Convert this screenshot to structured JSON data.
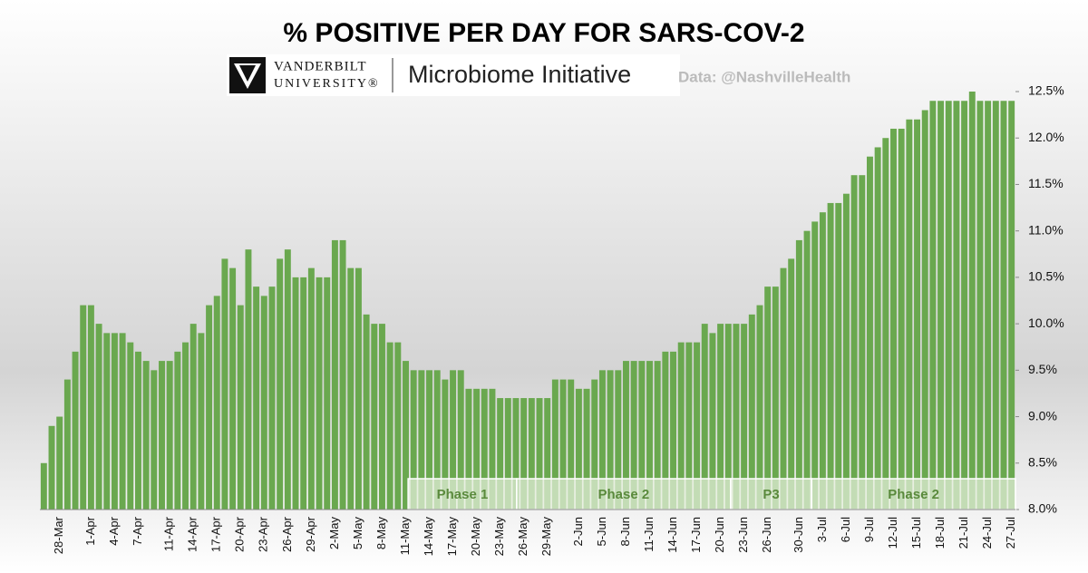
{
  "header": {
    "logo_top": "VANDERBILT",
    "logo_bottom": "UNIVERSITY®",
    "initiative": "Microbiome Initiative",
    "source": "Data: @NashvilleHealth"
  },
  "chart_data": {
    "type": "bar",
    "title": "% POSITIVE PER DAY FOR SARS-COV-2",
    "color": "#6aa84f",
    "categories": [
      null,
      null,
      "28-Mar",
      null,
      null,
      null,
      "1-Apr",
      null,
      null,
      "4-Apr",
      null,
      null,
      "7-Apr",
      null,
      null,
      null,
      "11-Apr",
      null,
      null,
      "14-Apr",
      null,
      null,
      "17-Apr",
      null,
      null,
      "20-Apr",
      null,
      null,
      "23-Apr",
      null,
      null,
      "26-Apr",
      null,
      null,
      "29-Apr",
      null,
      null,
      "2-May",
      null,
      null,
      "5-May",
      null,
      null,
      "8-May",
      null,
      null,
      "11-May",
      null,
      null,
      "14-May",
      null,
      null,
      "17-May",
      null,
      null,
      "20-May",
      null,
      null,
      "23-May",
      null,
      null,
      "26-May",
      null,
      null,
      "29-May",
      null,
      null,
      null,
      "2-Jun",
      null,
      null,
      "5-Jun",
      null,
      null,
      "8-Jun",
      null,
      null,
      "11-Jun",
      null,
      null,
      "14-Jun",
      null,
      null,
      "17-Jun",
      null,
      null,
      "20-Jun",
      null,
      null,
      "23-Jun",
      null,
      null,
      "26-Jun",
      null,
      null,
      null,
      "30-Jun",
      null,
      null,
      "3-Jul",
      null,
      null,
      "6-Jul",
      null,
      null,
      "9-Jul",
      null,
      null,
      "12-Jul",
      null,
      null,
      "15-Jul",
      null,
      null,
      "18-Jul",
      null,
      null,
      "21-Jul",
      null,
      null,
      "24-Jul",
      null,
      null,
      "27-Jul"
    ],
    "values": [
      8.5,
      8.9,
      9.0,
      9.4,
      9.7,
      10.2,
      10.2,
      10.0,
      9.9,
      9.9,
      9.9,
      9.8,
      9.7,
      9.6,
      9.5,
      9.6,
      9.6,
      9.7,
      9.8,
      10.0,
      9.9,
      10.2,
      10.3,
      10.7,
      10.6,
      10.2,
      10.8,
      10.4,
      10.3,
      10.4,
      10.7,
      10.8,
      10.5,
      10.5,
      10.6,
      10.5,
      10.5,
      10.9,
      10.9,
      10.6,
      10.6,
      10.1,
      10.0,
      10.0,
      9.8,
      9.8,
      9.6,
      9.5,
      9.5,
      9.5,
      9.5,
      9.4,
      9.5,
      9.5,
      9.3,
      9.3,
      9.3,
      9.3,
      9.2,
      9.2,
      9.2,
      9.2,
      9.2,
      9.2,
      9.2,
      9.4,
      9.4,
      9.4,
      9.3,
      9.3,
      9.4,
      9.5,
      9.5,
      9.5,
      9.6,
      9.6,
      9.6,
      9.6,
      9.6,
      9.7,
      9.7,
      9.8,
      9.8,
      9.8,
      10.0,
      9.9,
      10.0,
      10.0,
      10.0,
      10.0,
      10.1,
      10.2,
      10.4,
      10.4,
      10.6,
      10.7,
      10.9,
      11.0,
      11.1,
      11.2,
      11.3,
      11.3,
      11.4,
      11.6,
      11.6,
      11.8,
      11.9,
      12.0,
      12.1,
      12.1,
      12.2,
      12.2,
      12.3,
      12.4,
      12.4,
      12.4,
      12.4,
      12.4,
      12.5,
      12.4,
      12.4,
      12.4,
      12.4,
      12.4
    ],
    "ylim": [
      8,
      12.5
    ],
    "yticks": [
      {
        "value": 8,
        "label": "8.0%"
      },
      {
        "value": 8.5,
        "label": "8.5%"
      },
      {
        "value": 9,
        "label": "9.0%"
      },
      {
        "value": 9.5,
        "label": "9.5%"
      },
      {
        "value": 10,
        "label": "10.0%"
      },
      {
        "value": 10.5,
        "label": "10.5%"
      },
      {
        "value": 11,
        "label": "11.0%"
      },
      {
        "value": 11.5,
        "label": "11.5%"
      },
      {
        "value": 12,
        "label": "12.0%"
      },
      {
        "value": 12.5,
        "label": "12.5%"
      }
    ],
    "annotations": [
      "Phase 1",
      "Phase 2",
      "P3",
      "Phase 2"
    ]
  }
}
